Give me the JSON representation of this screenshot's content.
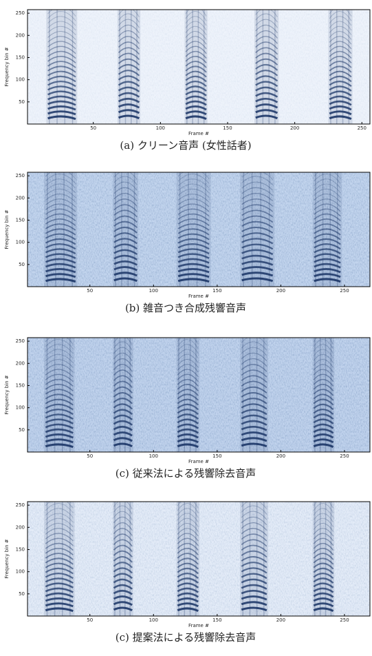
{
  "chart_data": [
    {
      "type": "spectrogram",
      "xlabel": "Frame #",
      "ylabel": "Frequency bin #",
      "caption": "(a) クリーン音声 (女性話者)",
      "xlim": [
        1,
        256
      ],
      "ylim": [
        0,
        258
      ],
      "xticks": [
        50,
        100,
        150,
        200,
        250
      ],
      "yticks": [
        50,
        100,
        150,
        200,
        250
      ],
      "bursts": [
        [
          15,
          38
        ],
        [
          68,
          85
        ],
        [
          118,
          135
        ],
        [
          170,
          188
        ],
        [
          225,
          243
        ]
      ],
      "background": "#eef3fb",
      "color": "#1d3768",
      "noise": 0.15
    },
    {
      "type": "spectrogram",
      "xlabel": "Frame #",
      "ylabel": "Frequency bin #",
      "caption": "(b) 雑音つき合成残響音声",
      "xlim": [
        1,
        270
      ],
      "ylim": [
        0,
        258
      ],
      "xticks": [
        50,
        100,
        150,
        200,
        250
      ],
      "yticks": [
        50,
        100,
        150,
        200,
        250
      ],
      "bursts": [
        [
          14,
          40
        ],
        [
          68,
          88
        ],
        [
          118,
          145
        ],
        [
          168,
          195
        ],
        [
          225,
          248
        ]
      ],
      "background": "#c3d5ee",
      "color": "#1d3768",
      "noise": 0.6
    },
    {
      "type": "spectrogram",
      "xlabel": "Frame #",
      "ylabel": "Frequency bin #",
      "caption": "(c) 従来法による残響除去音声",
      "xlim": [
        1,
        270
      ],
      "ylim": [
        0,
        258
      ],
      "xticks": [
        50,
        100,
        150,
        200,
        250
      ],
      "yticks": [
        50,
        100,
        150,
        200,
        250
      ],
      "bursts": [
        [
          14,
          38
        ],
        [
          68,
          84
        ],
        [
          118,
          136
        ],
        [
          168,
          190
        ],
        [
          225,
          242
        ]
      ],
      "background": "#c1d3ed",
      "color": "#1d3768",
      "noise": 0.6
    },
    {
      "type": "spectrogram",
      "xlabel": "Frame #",
      "ylabel": "Frequency bin #",
      "caption": "(c) 提案法による残響除去音声",
      "xlim": [
        1,
        270
      ],
      "ylim": [
        0,
        258
      ],
      "xticks": [
        50,
        100,
        150,
        200,
        250
      ],
      "yticks": [
        50,
        100,
        150,
        200,
        250
      ],
      "bursts": [
        [
          14,
          38
        ],
        [
          68,
          84
        ],
        [
          118,
          136
        ],
        [
          168,
          190
        ],
        [
          225,
          242
        ]
      ],
      "background": "#e4ecf8",
      "color": "#1d3768",
      "noise": 0.35
    }
  ]
}
